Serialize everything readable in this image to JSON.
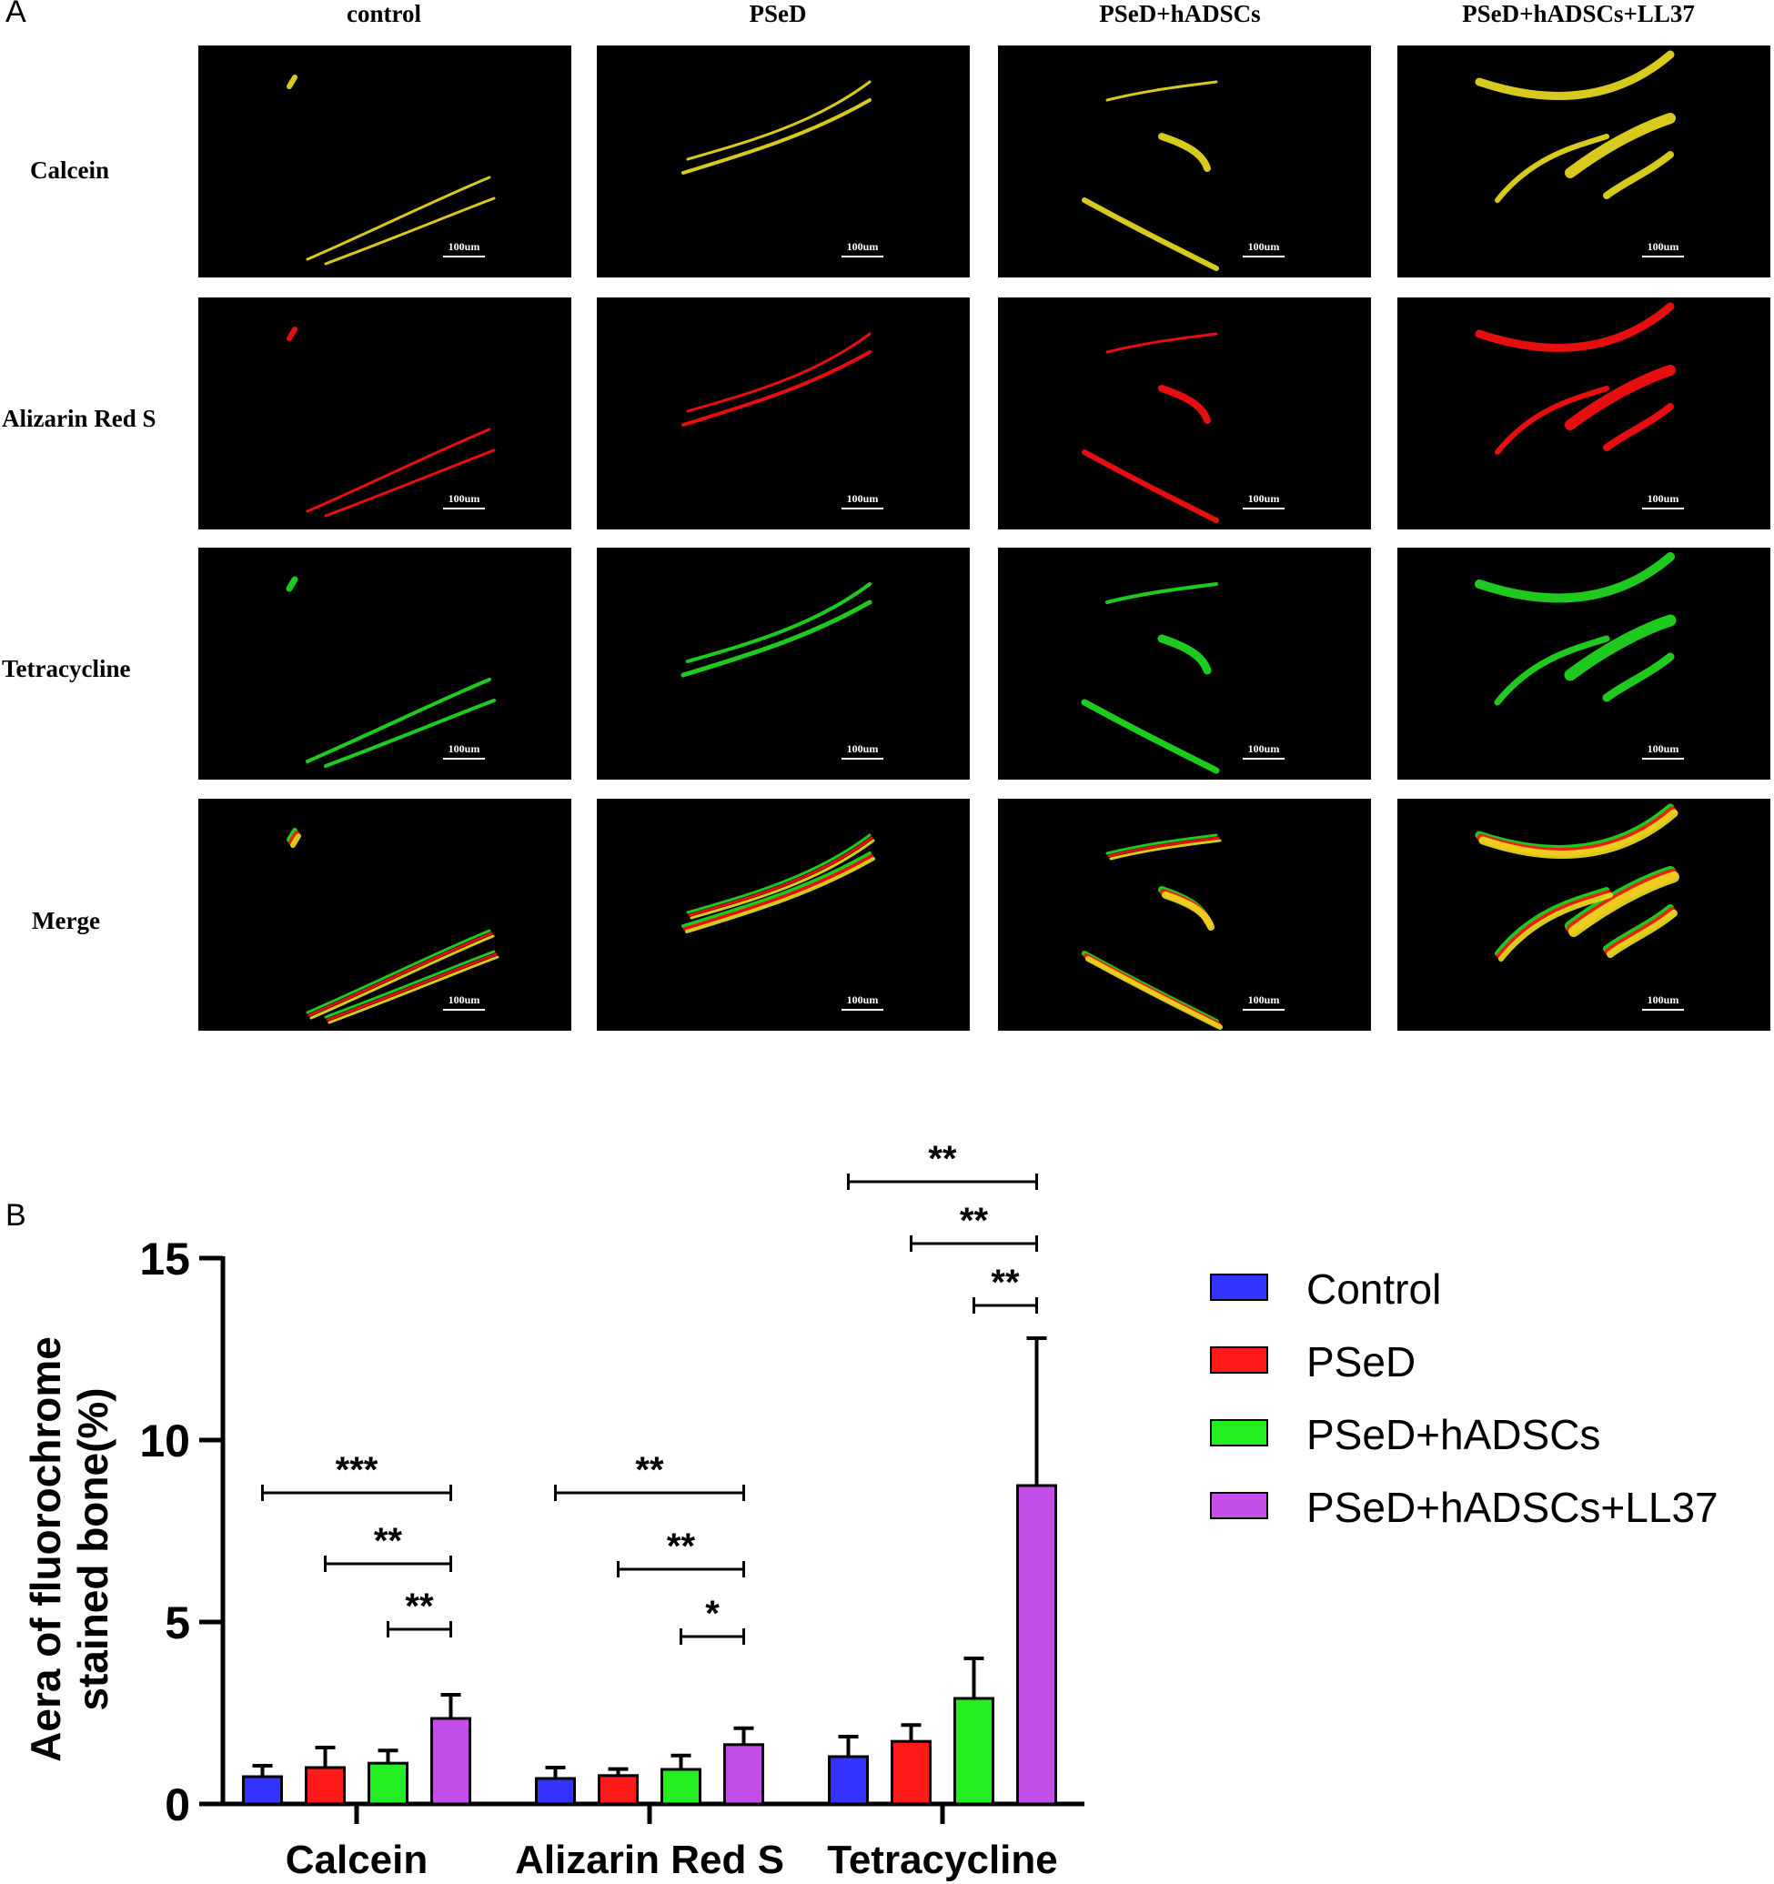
{
  "panel_a": {
    "letter": "A",
    "columns": [
      "control",
      "PSeD",
      "PSeD+hADSCs",
      "PSeD+hADSCs+LL37"
    ],
    "rows": [
      "Calcein",
      "Alizarin Red S",
      "Tetracycline",
      "Merge"
    ],
    "scale_bar_label": "100um",
    "stain_colors": {
      "Calcein": "#f0e020",
      "Alizarin Red S": "#ff1010",
      "Tetracycline": "#22e022"
    }
  },
  "panel_b": {
    "letter": "B",
    "legend": [
      {
        "label": "Control",
        "color": "#3333ff"
      },
      {
        "label": "PSeD",
        "color": "#ff1a1a"
      },
      {
        "label": "PSeD+hADSCs",
        "color": "#22ee22"
      },
      {
        "label": "PSeD+hADSCs+LL37",
        "color": "#c44fe8"
      }
    ]
  },
  "chart_data": {
    "type": "bar",
    "title": "",
    "xlabel": "",
    "ylabel": "Aera of fluorochrome stained bone(%)",
    "ylim": [
      0,
      15
    ],
    "yticks": [
      0,
      5,
      10,
      15
    ],
    "categories": [
      "Calcein",
      "Alizarin Red S",
      "Tetracycline"
    ],
    "series": [
      {
        "name": "Control",
        "color": "#3333ff",
        "values": [
          0.75,
          0.7,
          1.3
        ],
        "errors": [
          0.3,
          0.3,
          0.55
        ]
      },
      {
        "name": "PSeD",
        "color": "#ff1a1a",
        "values": [
          1.0,
          0.78,
          1.72
        ],
        "errors": [
          0.55,
          0.18,
          0.45
        ]
      },
      {
        "name": "PSeD+hADSCs",
        "color": "#22ee22",
        "values": [
          1.12,
          0.95,
          2.9
        ],
        "errors": [
          0.35,
          0.38,
          1.1
        ]
      },
      {
        "name": "PSeD+hADSCs+LL37",
        "color": "#c44fe8",
        "values": [
          2.35,
          1.63,
          8.75
        ],
        "errors": [
          0.65,
          0.45,
          4.05
        ]
      }
    ],
    "significance": [
      {
        "category": "Calcein",
        "from": "Control",
        "to": "PSeD+hADSCs+LL37",
        "label": "***",
        "y": 8.55
      },
      {
        "category": "Calcein",
        "from": "PSeD",
        "to": "PSeD+hADSCs+LL37",
        "label": "**",
        "y": 6.6
      },
      {
        "category": "Calcein",
        "from": "PSeD+hADSCs",
        "to": "PSeD+hADSCs+LL37",
        "label": "**",
        "y": 4.8
      },
      {
        "category": "Alizarin Red S",
        "from": "Control",
        "to": "PSeD+hADSCs+LL37",
        "label": "**",
        "y": 8.55
      },
      {
        "category": "Alizarin Red S",
        "from": "PSeD",
        "to": "PSeD+hADSCs+LL37",
        "label": "**",
        "y": 6.45
      },
      {
        "category": "Alizarin Red S",
        "from": "PSeD+hADSCs",
        "to": "PSeD+hADSCs+LL37",
        "label": "*",
        "y": 4.6
      },
      {
        "category": "Tetracycline",
        "from": "Control",
        "to": "PSeD+hADSCs+LL37",
        "label": "**",
        "y": 17.1
      },
      {
        "category": "Tetracycline",
        "from": "PSeD",
        "to": "PSeD+hADSCs+LL37",
        "label": "**",
        "y": 15.4
      },
      {
        "category": "Tetracycline",
        "from": "PSeD+hADSCs",
        "to": "PSeD+hADSCs+LL37",
        "label": "**",
        "y": 13.7
      }
    ],
    "grid": false,
    "legend_position": "right"
  }
}
